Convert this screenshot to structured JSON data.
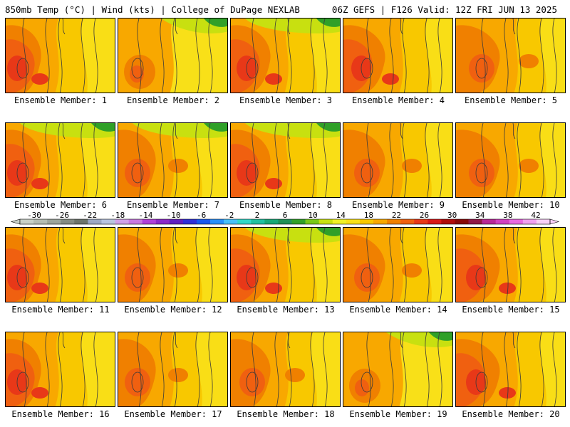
{
  "header": {
    "left": "850mb Temp (°C) | Wind (kts) | College of DuPage NEXLAB",
    "right": "06Z GEFS | F126 Valid: 12Z FRI JUN 13 2025"
  },
  "panels": [
    {
      "label": "Ensemble Member: 1",
      "style": "hot",
      "green": false
    },
    {
      "label": "Ensemble Member: 2",
      "style": "yellow-east",
      "green": true
    },
    {
      "label": "Ensemble Member: 3",
      "style": "hot",
      "green": true
    },
    {
      "label": "Ensemble Member: 4",
      "style": "hot",
      "green": false
    },
    {
      "label": "Ensemble Member: 5",
      "style": "mild",
      "green": false
    },
    {
      "label": "Ensemble Member: 6",
      "style": "hot",
      "green": true
    },
    {
      "label": "Ensemble Member: 7",
      "style": "mild",
      "green": true
    },
    {
      "label": "Ensemble Member: 8",
      "style": "hot",
      "green": true
    },
    {
      "label": "Ensemble Member: 9",
      "style": "mild",
      "green": false
    },
    {
      "label": "Ensemble Member: 10",
      "style": "mild",
      "green": false
    },
    {
      "label": "Ensemble Member: 11",
      "style": "hot",
      "green": false
    },
    {
      "label": "Ensemble Member: 12",
      "style": "mild",
      "green": false
    },
    {
      "label": "Ensemble Member: 13",
      "style": "hot",
      "green": true
    },
    {
      "label": "Ensemble Member: 14",
      "style": "mild",
      "green": false
    },
    {
      "label": "Ensemble Member: 15",
      "style": "hot",
      "green": false
    },
    {
      "label": "Ensemble Member: 16",
      "style": "hot",
      "green": false
    },
    {
      "label": "Ensemble Member: 17",
      "style": "mild",
      "green": false
    },
    {
      "label": "Ensemble Member: 18",
      "style": "mild",
      "green": false
    },
    {
      "label": "Ensemble Member: 19",
      "style": "yellow-east",
      "green": true
    },
    {
      "label": "Ensemble Member: 20",
      "style": "hot",
      "green": false
    }
  ],
  "colorbar": {
    "labels": [
      "-30",
      "-26",
      "-22",
      "-18",
      "-14",
      "-10",
      "-6",
      "-2",
      "2",
      "6",
      "10",
      "14",
      "18",
      "22",
      "26",
      "30",
      "34",
      "38",
      "42"
    ],
    "colors": [
      "#c8d0c8",
      "#b4bcb4",
      "#9ca49c",
      "#848c84",
      "#6c746c",
      "#9ca8c4",
      "#b8c4e0",
      "#d0a0e8",
      "#c878e0",
      "#b040d8",
      "#8c28c8",
      "#6020c0",
      "#3030d8",
      "#1858f0",
      "#2890f8",
      "#48c0f8",
      "#30d8c8",
      "#20c0a0",
      "#18a878",
      "#209058",
      "#30a028",
      "#78c818",
      "#c8e010",
      "#f0f028",
      "#f8e018",
      "#f8c800",
      "#f8a800",
      "#f08000",
      "#f06010",
      "#e83818",
      "#d81818",
      "#b00c0c",
      "#880808",
      "#901848",
      "#b82898",
      "#d040c0",
      "#e868e0",
      "#f0a0f0",
      "#f8d0f8"
    ]
  }
}
